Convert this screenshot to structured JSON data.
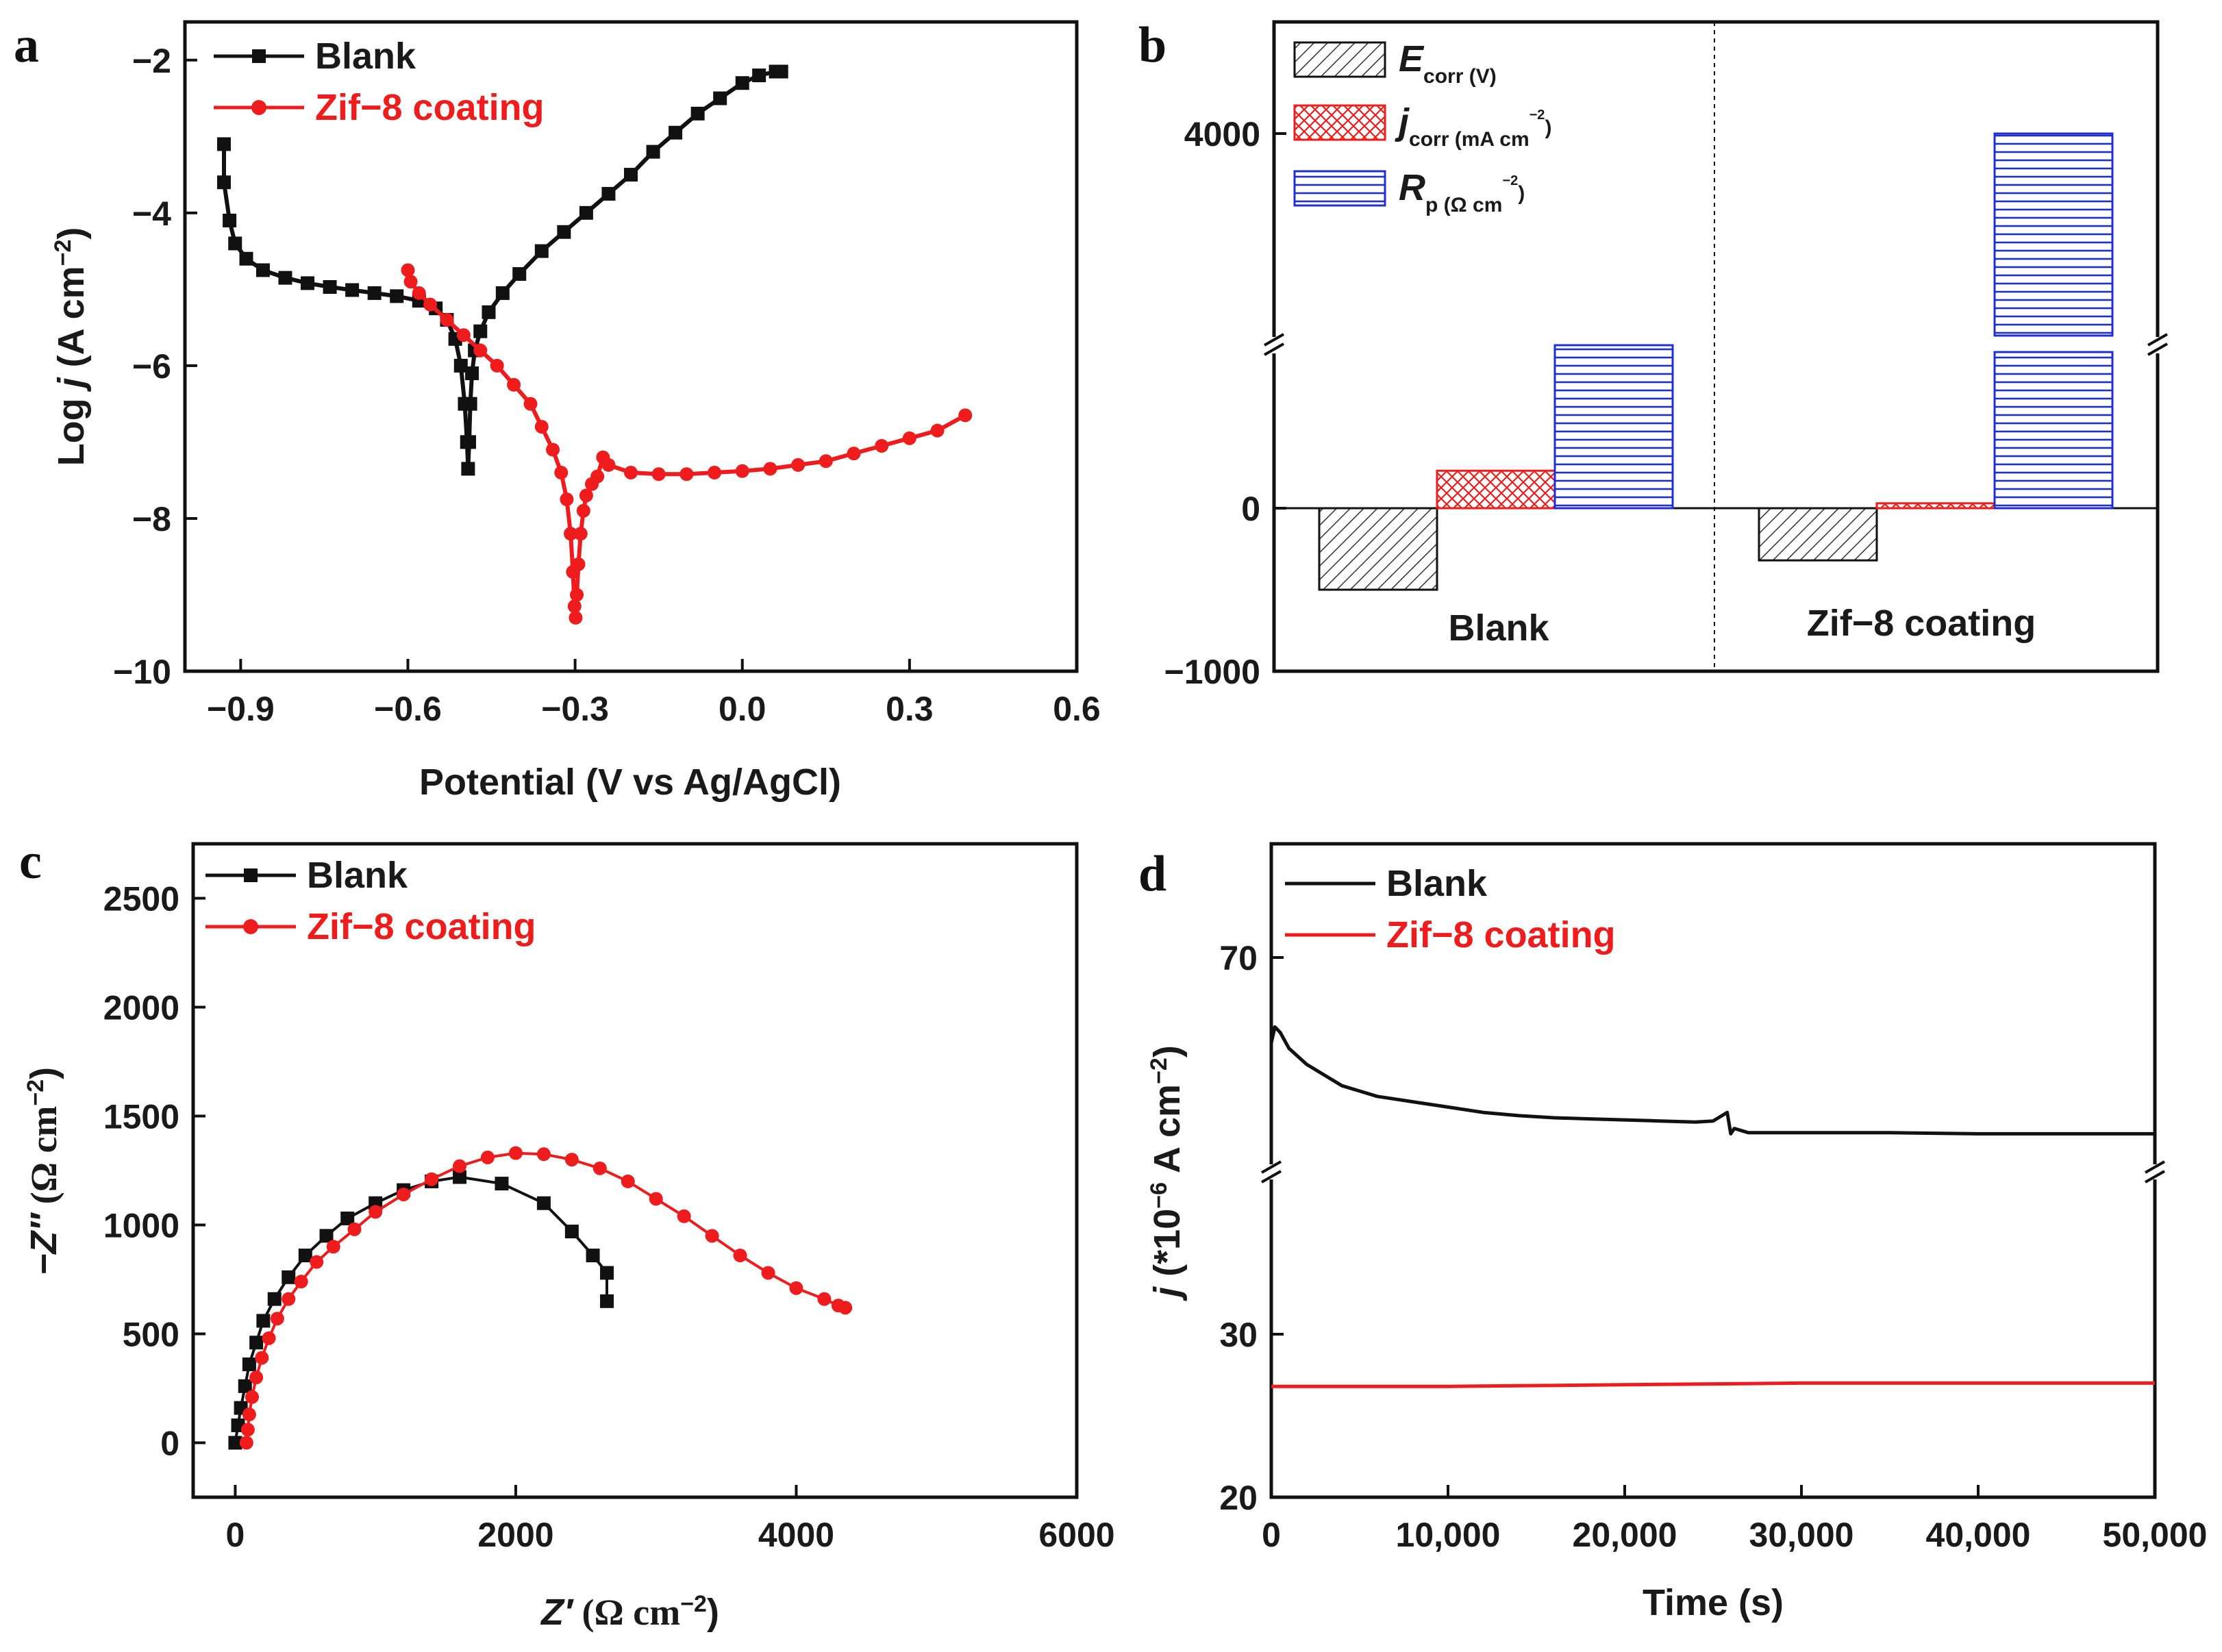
{
  "colors": {
    "black": "#111111",
    "red": "#ee1c1c",
    "blue": "#1f2fd1",
    "gray": "#555555"
  },
  "chart_data": [
    {
      "panel": "a",
      "type": "line",
      "xlabel": "Potential (V vs Ag/AgCl)",
      "ylabel_prefix": "Log ",
      "ylabel_var": "j",
      "ylabel_unit": " (A cm",
      "ylabel_exp": "−2",
      "ylabel_close": ")",
      "xlim": [
        -1.0,
        0.6
      ],
      "ylim": [
        -10,
        -1.5
      ],
      "xticks": [
        -0.9,
        -0.6,
        -0.3,
        0.0,
        0.3,
        0.6
      ],
      "xtick_labels": [
        "−0.9",
        "−0.6",
        "−0.3",
        "0.0",
        "0.3",
        "0.6"
      ],
      "yticks": [
        -2,
        -4,
        -6,
        -8,
        -10
      ],
      "ytick_labels": [
        "−2",
        "−4",
        "−6",
        "−8",
        "−10"
      ],
      "legend": [
        "Blank",
        "Zif−8 coating"
      ],
      "legend_position": "top-left",
      "series": [
        {
          "name": "Blank",
          "color": "black",
          "marker": "square",
          "x": [
            -0.93,
            -0.93,
            -0.92,
            -0.91,
            -0.89,
            -0.86,
            -0.82,
            -0.78,
            -0.74,
            -0.7,
            -0.66,
            -0.62,
            -0.58,
            -0.55,
            -0.53,
            -0.515,
            -0.505,
            -0.498,
            -0.494,
            -0.492,
            -0.49,
            -0.488,
            -0.485,
            -0.48,
            -0.47,
            -0.455,
            -0.43,
            -0.4,
            -0.36,
            -0.32,
            -0.28,
            -0.24,
            -0.2,
            -0.16,
            -0.12,
            -0.08,
            -0.04,
            0.0,
            0.03,
            0.06,
            0.07
          ],
          "y": [
            -3.1,
            -3.6,
            -4.1,
            -4.4,
            -4.6,
            -4.75,
            -4.85,
            -4.92,
            -4.97,
            -5.01,
            -5.05,
            -5.09,
            -5.15,
            -5.25,
            -5.4,
            -5.65,
            -6.0,
            -6.5,
            -7.0,
            -7.35,
            -7.0,
            -6.5,
            -6.1,
            -5.8,
            -5.55,
            -5.3,
            -5.05,
            -4.8,
            -4.5,
            -4.25,
            -4.0,
            -3.75,
            -3.5,
            -3.2,
            -2.95,
            -2.7,
            -2.5,
            -2.3,
            -2.2,
            -2.15,
            -2.15
          ]
        },
        {
          "name": "Zif−8 coating",
          "color": "red",
          "marker": "circle",
          "x": [
            -0.6,
            -0.595,
            -0.58,
            -0.56,
            -0.53,
            -0.5,
            -0.47,
            -0.44,
            -0.41,
            -0.38,
            -0.36,
            -0.34,
            -0.325,
            -0.315,
            -0.308,
            -0.304,
            -0.301,
            -0.299,
            -0.297,
            -0.294,
            -0.29,
            -0.285,
            -0.28,
            -0.27,
            -0.26,
            -0.25,
            -0.24,
            -0.2,
            -0.15,
            -0.1,
            -0.05,
            0.0,
            0.05,
            0.1,
            0.15,
            0.2,
            0.25,
            0.3,
            0.35,
            0.4
          ],
          "y": [
            -4.75,
            -4.9,
            -5.05,
            -5.2,
            -5.4,
            -5.6,
            -5.8,
            -6.0,
            -6.25,
            -6.5,
            -6.8,
            -7.1,
            -7.4,
            -7.75,
            -8.2,
            -8.7,
            -9.15,
            -9.3,
            -9.0,
            -8.6,
            -8.2,
            -7.9,
            -7.7,
            -7.55,
            -7.45,
            -7.2,
            -7.3,
            -7.4,
            -7.42,
            -7.42,
            -7.4,
            -7.38,
            -7.35,
            -7.3,
            -7.25,
            -7.15,
            -7.05,
            -6.95,
            -6.85,
            -6.65
          ]
        }
      ]
    },
    {
      "panel": "b",
      "type": "bar",
      "categories": [
        "Blank",
        "Zif−8 coating"
      ],
      "ylim": [
        -1000,
        5000
      ],
      "yticks": [
        -1000,
        0,
        4000
      ],
      "ytick_labels": [
        "−1000",
        "0",
        "4000"
      ],
      "axis_break": true,
      "legend_position": "top-left",
      "legend": [
        {
          "sym": "E",
          "sub": "corr (V)",
          "color": "gray",
          "pattern": "diagonal"
        },
        {
          "sym": "j",
          "sub": "corr (mA cm",
          "sub_exp": "−2",
          "sub_close": ")",
          "color": "red",
          "pattern": "crosshatch"
        },
        {
          "sym": "R",
          "sub": "p (Ω cm",
          "sub_exp": "−2",
          "sub_close": ")",
          "color": "blue",
          "pattern": "horizontal"
        }
      ],
      "series": [
        {
          "name": "Ecorr",
          "values": [
            -500,
            -320
          ]
        },
        {
          "name": "jcorr",
          "values": [
            230,
            30
          ]
        },
        {
          "name": "Rp",
          "values": [
            1000,
            4000
          ]
        }
      ]
    },
    {
      "panel": "c",
      "type": "scatter",
      "xlabel_var": "Z′",
      "xlabel_unit": " (Ω cm",
      "xlabel_exp": "−2",
      "xlabel_close": ")",
      "ylabel_var": "−Z″",
      "ylabel_unit": " (Ω cm",
      "ylabel_exp": "−2",
      "ylabel_close": ")",
      "xlim": [
        -300,
        6000
      ],
      "ylim": [
        -250,
        2750
      ],
      "xticks": [
        0,
        2000,
        4000,
        6000
      ],
      "xtick_labels": [
        "0",
        "2000",
        "4000",
        "6000"
      ],
      "yticks": [
        0,
        500,
        1000,
        1500,
        2000,
        2500
      ],
      "ytick_labels": [
        "0",
        "500",
        "1000",
        "1500",
        "2000",
        "2500"
      ],
      "legend": [
        "Blank",
        "Zif−8 coating"
      ],
      "legend_position": "top-left",
      "series": [
        {
          "name": "Blank",
          "color": "black",
          "marker": "square",
          "x": [
            0,
            20,
            40,
            70,
            100,
            150,
            200,
            280,
            380,
            500,
            650,
            800,
            1000,
            1200,
            1400,
            1600,
            1900,
            2200,
            2400,
            2550,
            2650,
            2650
          ],
          "y": [
            0,
            80,
            160,
            260,
            360,
            460,
            560,
            660,
            760,
            860,
            950,
            1030,
            1100,
            1160,
            1200,
            1220,
            1190,
            1100,
            970,
            860,
            780,
            650
          ]
        },
        {
          "name": "Zif−8 coating",
          "color": "red",
          "marker": "circle",
          "x": [
            80,
            90,
            100,
            120,
            150,
            190,
            240,
            300,
            380,
            470,
            580,
            700,
            850,
            1000,
            1200,
            1400,
            1600,
            1800,
            2000,
            2200,
            2400,
            2600,
            2800,
            3000,
            3200,
            3400,
            3600,
            3800,
            4000,
            4200,
            4300,
            4350
          ],
          "y": [
            0,
            60,
            130,
            210,
            300,
            390,
            480,
            570,
            660,
            740,
            830,
            900,
            980,
            1060,
            1140,
            1210,
            1270,
            1310,
            1330,
            1325,
            1300,
            1260,
            1200,
            1120,
            1040,
            950,
            860,
            780,
            710,
            660,
            630,
            620
          ]
        }
      ]
    },
    {
      "panel": "d",
      "type": "line",
      "xlabel": "Time (s)",
      "ylabel_var": "j",
      "ylabel_unit": " (*10",
      "ylabel_exp": "−6",
      "ylabel_mid": " A cm",
      "ylabel_exp2": "−2",
      "ylabel_close": ")",
      "xlim": [
        0,
        50000
      ],
      "ylim": [
        20,
        80
      ],
      "axis_break": true,
      "xticks": [
        0,
        10000,
        20000,
        30000,
        40000,
        50000
      ],
      "xtick_labels": [
        "0",
        "10,000",
        "20,000",
        "30,000",
        "40,000",
        "50,000"
      ],
      "yticks": [
        20,
        30,
        70
      ],
      "ytick_labels": [
        "20",
        "30",
        "70"
      ],
      "legend": [
        "Blank",
        "Zif−8 coating"
      ],
      "legend_position": "top-left",
      "series": [
        {
          "name": "Blank",
          "color": "black",
          "x": [
            0,
            200,
            500,
            1000,
            2000,
            3000,
            4000,
            5000,
            6000,
            8000,
            10000,
            12000,
            14000,
            16000,
            18000,
            20000,
            22000,
            24000,
            25000,
            25800,
            26000,
            26200,
            27000,
            30000,
            35000,
            40000,
            45000,
            50000
          ],
          "y": [
            62,
            63.5,
            63,
            61.5,
            60,
            59,
            58,
            57.5,
            57,
            56.5,
            56,
            55.5,
            55.2,
            55,
            54.9,
            54.8,
            54.7,
            54.6,
            54.7,
            55.5,
            53.5,
            54,
            53.6,
            53.6,
            53.6,
            53.5,
            53.5,
            53.5
          ]
        },
        {
          "name": "Zif−8 coating",
          "color": "red",
          "x": [
            0,
            10000,
            20000,
            30000,
            40000,
            50000
          ],
          "y": [
            26.8,
            26.8,
            26.9,
            27.0,
            27.0,
            27.0
          ]
        }
      ]
    }
  ]
}
